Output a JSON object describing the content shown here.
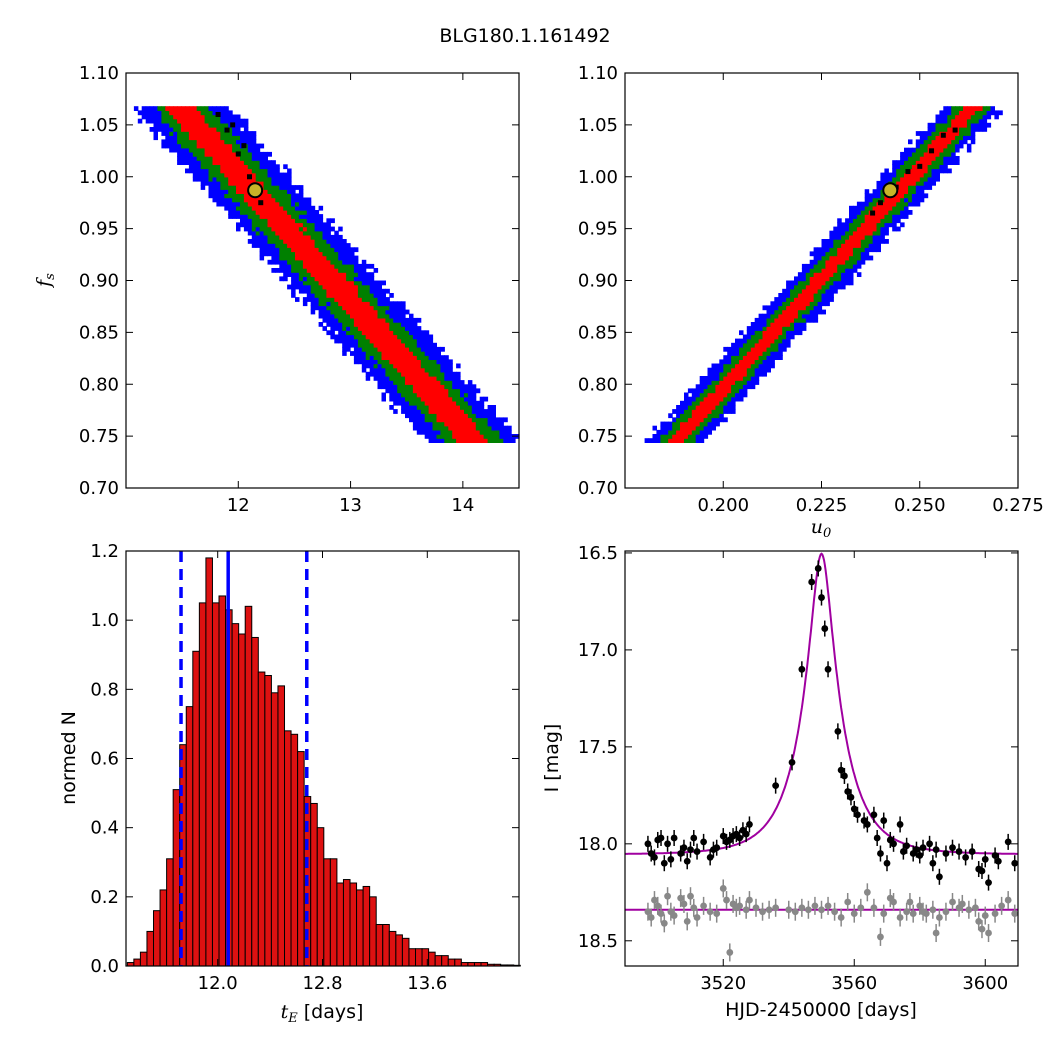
{
  "figure": {
    "title": "BLG180.1.161492"
  },
  "colors": {
    "outer": "#0000ff",
    "middle": "#008000",
    "inner": "#ff0000",
    "core": "#000000",
    "best_fill": "#c8b428",
    "hist_fill": "#dd1111",
    "model_line": "#a000a0",
    "grey_data": "#888888"
  },
  "chart_data": [
    {
      "id": "tE_fs",
      "type": "heatmap",
      "xlabel": "",
      "ylabel": "f_s",
      "xlim": [
        11.0,
        14.5
      ],
      "ylim": [
        0.7,
        1.1
      ],
      "xticks": [
        "12",
        "13",
        "14"
      ],
      "xtick_values": [
        12,
        13,
        14
      ],
      "yticks": [
        "0.70",
        "0.75",
        "0.80",
        "0.85",
        "0.90",
        "0.95",
        "1.00",
        "1.05",
        "1.10"
      ],
      "ytick_values": [
        0.7,
        0.75,
        0.8,
        0.85,
        0.9,
        0.95,
        1.0,
        1.05,
        1.1
      ],
      "band": {
        "start": [
          11.5,
          1.065
        ],
        "end": [
          14.1,
          0.745
        ],
        "widths_x": [
          0.42,
          0.26,
          0.14
        ]
      },
      "best_fit": {
        "x": 12.15,
        "y": 0.987
      },
      "core_points": [
        [
          11.82,
          1.06
        ],
        [
          11.9,
          1.045
        ],
        [
          12.0,
          1.022
        ],
        [
          12.05,
          1.03
        ],
        [
          12.2,
          0.975
        ],
        [
          11.95,
          1.05
        ],
        [
          12.1,
          1.0
        ]
      ]
    },
    {
      "id": "u0_fs",
      "type": "heatmap",
      "xlabel": "u_0",
      "ylabel": "",
      "xlim": [
        0.175,
        0.275
      ],
      "ylim": [
        0.7,
        1.1
      ],
      "xticks": [
        "0.200",
        "0.225",
        "0.250",
        "0.275"
      ],
      "xtick_values": [
        0.2,
        0.225,
        0.25,
        0.275
      ],
      "yticks": [
        "0.70",
        "0.75",
        "0.80",
        "0.85",
        "0.90",
        "0.95",
        "1.00",
        "1.05",
        "1.10"
      ],
      "ytick_values": [
        0.7,
        0.75,
        0.8,
        0.85,
        0.9,
        0.95,
        1.0,
        1.05,
        1.1
      ],
      "band": {
        "start": [
          0.188,
          0.745
        ],
        "end": [
          0.263,
          1.065
        ],
        "widths_x": [
          0.0075,
          0.0045,
          0.0022
        ]
      },
      "best_fit": {
        "x": 0.2425,
        "y": 0.987
      },
      "core_points": [
        [
          0.238,
          0.965
        ],
        [
          0.24,
          0.975
        ],
        [
          0.244,
          0.99
        ],
        [
          0.247,
          1.005
        ],
        [
          0.25,
          1.01
        ],
        [
          0.253,
          1.025
        ],
        [
          0.256,
          1.04
        ],
        [
          0.259,
          1.045
        ]
      ]
    },
    {
      "id": "tE_hist",
      "type": "bar",
      "xlabel": "t_E [days]",
      "ylabel": "normed N",
      "xlim": [
        11.3,
        14.3
      ],
      "ylim": [
        0.0,
        1.2
      ],
      "xticks": [
        "12.0",
        "12.8",
        "13.6"
      ],
      "xtick_values": [
        12.0,
        12.8,
        13.6
      ],
      "yticks": [
        "0.0",
        "0.2",
        "0.4",
        "0.6",
        "0.8",
        "1.0",
        "1.2"
      ],
      "ytick_values": [
        0.0,
        0.2,
        0.4,
        0.6,
        0.8,
        1.0,
        1.2
      ],
      "bin_start": 11.31,
      "bin_width": 0.05,
      "values": [
        0.01,
        0.02,
        0.04,
        0.1,
        0.16,
        0.22,
        0.31,
        0.51,
        0.64,
        0.75,
        0.91,
        1.05,
        1.18,
        1.05,
        1.07,
        1.03,
        0.99,
        0.96,
        1.04,
        0.95,
        0.85,
        0.84,
        0.79,
        0.81,
        0.68,
        0.67,
        0.62,
        0.49,
        0.47,
        0.4,
        0.31,
        0.31,
        0.24,
        0.25,
        0.24,
        0.22,
        0.23,
        0.2,
        0.12,
        0.12,
        0.1,
        0.09,
        0.08,
        0.05,
        0.05,
        0.05,
        0.04,
        0.03,
        0.03,
        0.02,
        0.02,
        0.01,
        0.01,
        0.01,
        0.01,
        0.005,
        0.005,
        0.003,
        0.003,
        0.002
      ],
      "vlines": [
        {
          "x": 12.08,
          "style": "solid"
        },
        {
          "x": 11.72,
          "style": "dashed"
        },
        {
          "x": 12.68,
          "style": "dashed"
        }
      ]
    },
    {
      "id": "lightcurve",
      "type": "scatter",
      "xlabel": "HJD-2450000 [days]",
      "ylabel": "I [mag]",
      "xlim": [
        3490,
        3610
      ],
      "ylim": [
        18.63,
        16.49
      ],
      "y_inverted": true,
      "xticks": [
        "3520",
        "3560",
        "3600"
      ],
      "xtick_values": [
        3520,
        3560,
        3600
      ],
      "yticks": [
        "16.5",
        "17.0",
        "17.5",
        "18.0",
        "18.5"
      ],
      "ytick_values": [
        16.5,
        17.0,
        17.5,
        18.0,
        18.5
      ],
      "model": {
        "t0": 3550,
        "tE": 12.2,
        "u0": 0.2425,
        "baseline": 18.055,
        "fs": 0.987
      },
      "grey_baseline": 18.34,
      "series": [
        {
          "style": "black",
          "points": [
            [
              3497,
              18.0
            ],
            [
              3498,
              18.05
            ],
            [
              3499,
              18.07
            ],
            [
              3500,
              17.98
            ],
            [
              3501,
              17.97
            ],
            [
              3502,
              18.1
            ],
            [
              3503,
              18.0
            ],
            [
              3504,
              18.08
            ],
            [
              3505,
              17.97
            ],
            [
              3507,
              18.05
            ],
            [
              3508,
              18.02
            ],
            [
              3509,
              18.09
            ],
            [
              3510,
              18.03
            ],
            [
              3511,
              17.97
            ],
            [
              3512,
              18.04
            ],
            [
              3514,
              17.99
            ],
            [
              3516,
              18.07
            ],
            [
              3517,
              18.03
            ],
            [
              3518,
              18.02
            ],
            [
              3520,
              17.96
            ],
            [
              3521,
              17.99
            ],
            [
              3522,
              17.98
            ],
            [
              3523,
              17.96
            ],
            [
              3524,
              17.95
            ],
            [
              3525,
              17.97
            ],
            [
              3526,
              17.93
            ],
            [
              3527,
              17.95
            ],
            [
              3528,
              17.9
            ],
            [
              3536,
              17.7
            ],
            [
              3541,
              17.58
            ],
            [
              3544,
              17.1
            ],
            [
              3547,
              16.65
            ],
            [
              3549,
              16.58
            ],
            [
              3550,
              16.73
            ],
            [
              3551,
              16.89
            ],
            [
              3552,
              17.1
            ],
            [
              3555,
              17.42
            ],
            [
              3556,
              17.62
            ],
            [
              3557,
              17.65
            ],
            [
              3558,
              17.73
            ],
            [
              3559,
              17.76
            ],
            [
              3560,
              17.82
            ],
            [
              3561,
              17.85
            ],
            [
              3563,
              17.88
            ],
            [
              3564,
              17.9
            ],
            [
              3566,
              17.85
            ],
            [
              3567,
              17.97
            ],
            [
              3568,
              18.05
            ],
            [
              3569,
              17.88
            ],
            [
              3570,
              18.1
            ],
            [
              3571,
              17.98
            ],
            [
              3572,
              18.0
            ],
            [
              3574,
              17.9
            ],
            [
              3575,
              18.04
            ],
            [
              3576,
              18.01
            ],
            [
              3578,
              18.05
            ],
            [
              3579,
              18.03
            ],
            [
              3580,
              18.06
            ],
            [
              3581,
              18.02
            ],
            [
              3583,
              18.0
            ],
            [
              3584,
              18.1
            ],
            [
              3585,
              18.03
            ],
            [
              3586,
              18.17
            ],
            [
              3588,
              18.05
            ],
            [
              3590,
              18.02
            ],
            [
              3592,
              18.04
            ],
            [
              3594,
              18.07
            ],
            [
              3596,
              18.04
            ],
            [
              3598,
              18.13
            ],
            [
              3599,
              18.14
            ],
            [
              3600,
              18.08
            ],
            [
              3601,
              18.2
            ],
            [
              3603,
              18.06
            ],
            [
              3604,
              18.09
            ],
            [
              3607,
              17.99
            ],
            [
              3609,
              18.1
            ]
          ]
        },
        {
          "style": "grey",
          "points": [
            [
              3497,
              18.35
            ],
            [
              3498,
              18.38
            ],
            [
              3499,
              18.29
            ],
            [
              3500,
              18.32
            ],
            [
              3501,
              18.36
            ],
            [
              3502,
              18.41
            ],
            [
              3503,
              18.27
            ],
            [
              3504,
              18.35
            ],
            [
              3505,
              18.37
            ],
            [
              3507,
              18.28
            ],
            [
              3508,
              18.31
            ],
            [
              3509,
              18.4
            ],
            [
              3510,
              18.27
            ],
            [
              3511,
              18.33
            ],
            [
              3512,
              18.38
            ],
            [
              3514,
              18.32
            ],
            [
              3516,
              18.35
            ],
            [
              3518,
              18.36
            ],
            [
              3520,
              18.23
            ],
            [
              3521,
              18.29
            ],
            [
              3522,
              18.56
            ],
            [
              3523,
              18.31
            ],
            [
              3524,
              18.33
            ],
            [
              3525,
              18.32
            ],
            [
              3527,
              18.34
            ],
            [
              3528,
              18.29
            ],
            [
              3530,
              18.33
            ],
            [
              3532,
              18.35
            ],
            [
              3534,
              18.34
            ],
            [
              3536,
              18.33
            ],
            [
              3540,
              18.34
            ],
            [
              3542,
              18.35
            ],
            [
              3544,
              18.33
            ],
            [
              3546,
              18.34
            ],
            [
              3548,
              18.32
            ],
            [
              3550,
              18.34
            ],
            [
              3552,
              18.32
            ],
            [
              3554,
              18.35
            ],
            [
              3556,
              18.38
            ],
            [
              3558,
              18.3
            ],
            [
              3560,
              18.36
            ],
            [
              3562,
              18.33
            ],
            [
              3564,
              18.25
            ],
            [
              3566,
              18.33
            ],
            [
              3568,
              18.48
            ],
            [
              3569,
              18.36
            ],
            [
              3571,
              18.28
            ],
            [
              3572,
              18.3
            ],
            [
              3574,
              18.38
            ],
            [
              3576,
              18.35
            ],
            [
              3577,
              18.3
            ],
            [
              3578,
              18.36
            ],
            [
              3580,
              18.32
            ],
            [
              3581,
              18.35
            ],
            [
              3582,
              18.36
            ],
            [
              3584,
              18.34
            ],
            [
              3585,
              18.46
            ],
            [
              3586,
              18.38
            ],
            [
              3588,
              18.35
            ],
            [
              3590,
              18.3
            ],
            [
              3592,
              18.33
            ],
            [
              3593,
              18.31
            ],
            [
              3595,
              18.34
            ],
            [
              3597,
              18.33
            ],
            [
              3598,
              18.4
            ],
            [
              3599,
              18.44
            ],
            [
              3600,
              18.37
            ],
            [
              3601,
              18.46
            ],
            [
              3603,
              18.36
            ],
            [
              3605,
              18.32
            ],
            [
              3607,
              18.29
            ],
            [
              3609,
              18.36
            ]
          ]
        }
      ]
    }
  ]
}
